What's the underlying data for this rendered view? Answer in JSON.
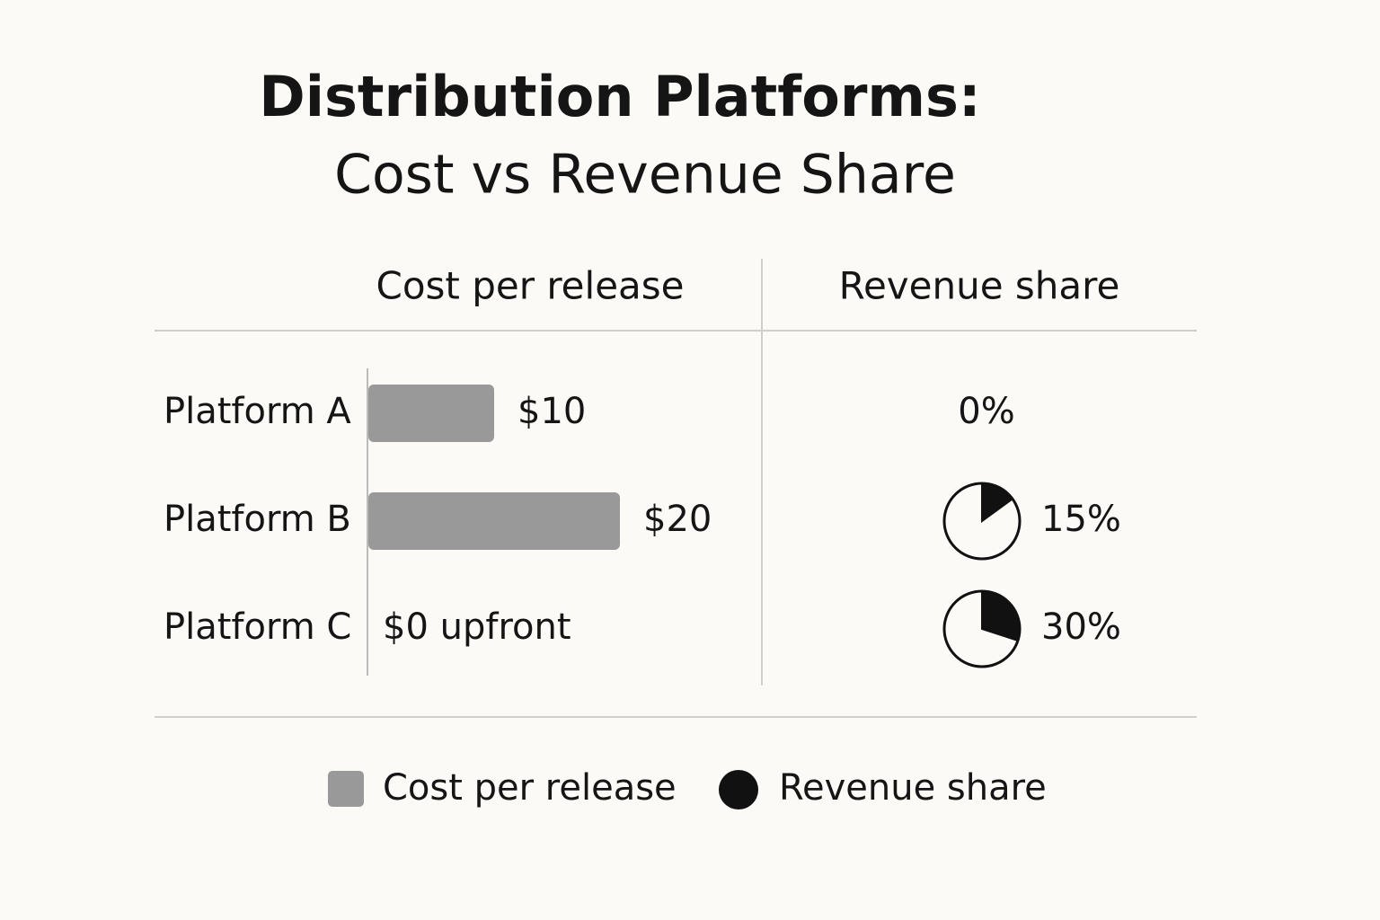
{
  "chart_data": {
    "type": "bar-and-pie",
    "title": "Distribution Platforms:",
    "subtitle": "Cost vs Revenue Share",
    "categories": [
      "Platform A",
      "Platform B",
      "Platform C"
    ],
    "series": [
      {
        "name": "Cost per release",
        "color": "#999999",
        "values": [
          10,
          20,
          0
        ],
        "value_labels": [
          "$10",
          "$20",
          "$0 upfront"
        ]
      },
      {
        "name": "Revenue share",
        "color": "#111111",
        "values": [
          0,
          15,
          30
        ],
        "value_labels": [
          "0%",
          "15%",
          "30%"
        ]
      }
    ]
  }
}
